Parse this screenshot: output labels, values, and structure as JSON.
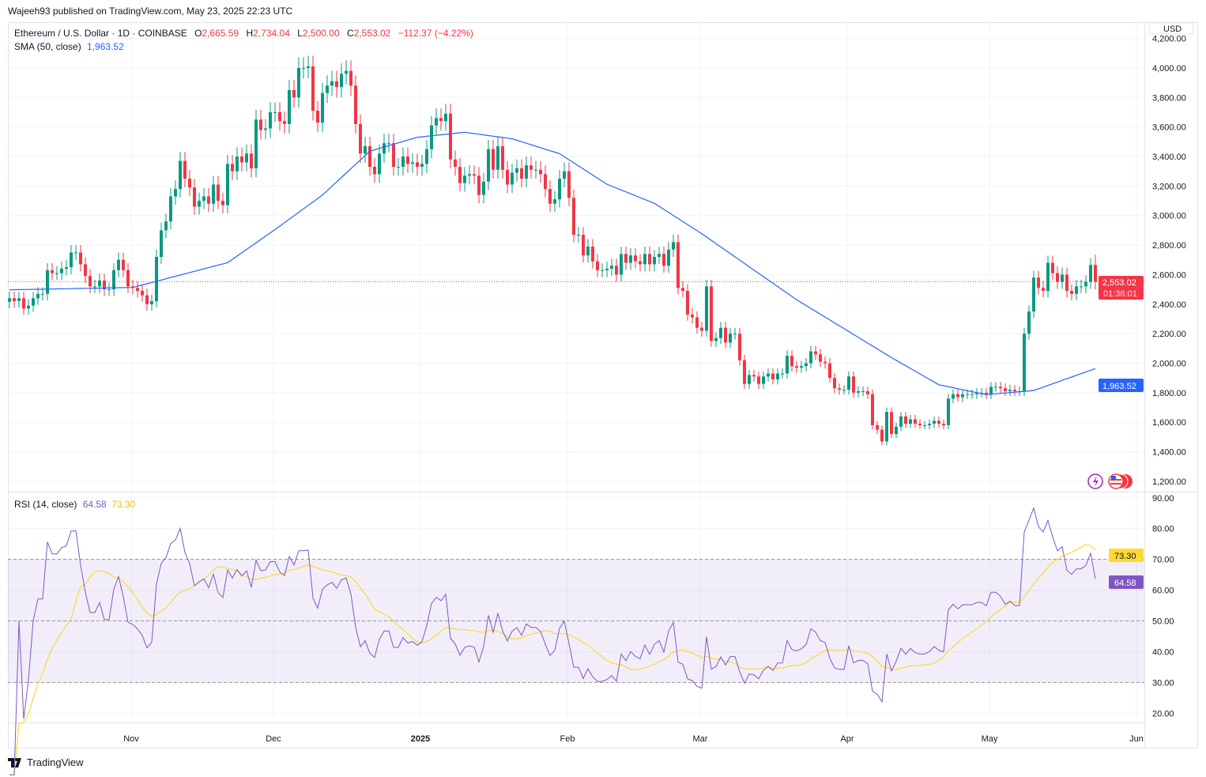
{
  "published": "Wajeeh93 published on TradingView.com, May 23, 2025 22:23 UTC",
  "legend": {
    "symbol": "Ethereum / U.S. Dollar · 1D · COINBASE",
    "o_label": "O",
    "o": "2,665.59",
    "h_label": "H",
    "h": "2,734.04",
    "l_label": "L",
    "l": "2,500.00",
    "c_label": "C",
    "c": "2,553.02",
    "change": "−112.37 (−4.22%)",
    "sma_label": "SMA (50, close)",
    "sma_value": "1,963.52",
    "rsi_label": "RSI (14, close)",
    "rsi_value": "64.58",
    "rsi_ma_value": "73.30"
  },
  "currency": "USD",
  "price_badge": {
    "price": "2,553.02",
    "countdown": "01:36:01"
  },
  "sma_badge": "1,963.52",
  "rsi_badges": {
    "rsi": "64.58",
    "ma": "73.30"
  },
  "logo_text": "TradingView",
  "colors": {
    "up": "#089981",
    "down": "#f23645",
    "sma": "#2962ff",
    "rsi": "#7e57c2",
    "rsi_ma": "#fdd835"
  },
  "chart_data": {
    "type": "candlestick",
    "start_date": "2024-10-06",
    "interval": "1D",
    "price_ticks": [
      "1,200.00",
      "1,400.00",
      "1,600.00",
      "1,800.00",
      "2,000.00",
      "2,200.00",
      "2,400.00",
      "2,600.00",
      "2,800.00",
      "3,000.00",
      "3,200.00",
      "3,400.00",
      "3,600.00",
      "3,800.00",
      "4,000.00",
      "4,200.00"
    ],
    "price_range": [
      1130,
      4310
    ],
    "rsi_ticks": [
      "20.00",
      "30.00",
      "40.00",
      "50.00",
      "60.00",
      "70.00",
      "80.00",
      "90.00"
    ],
    "rsi_range": [
      17,
      92
    ],
    "time_ticks": [
      {
        "label": "Nov",
        "index": 26
      },
      {
        "label": "Dec",
        "index": 56
      },
      {
        "label": "2025",
        "index": 87
      },
      {
        "label": "Feb",
        "index": 118
      },
      {
        "label": "Mar",
        "index": 146
      },
      {
        "label": "Apr",
        "index": 177
      },
      {
        "label": "May",
        "index": 207
      },
      {
        "label": "Jun",
        "index": 238
      }
    ],
    "last_open": 2665.59,
    "last_high": 2734.04,
    "last_low": 2500.0,
    "closes": [
      2440,
      2420,
      2440,
      2370,
      2390,
      2440,
      2470,
      2470,
      2630,
      2610,
      2610,
      2640,
      2650,
      2750,
      2750,
      2670,
      2590,
      2520,
      2520,
      2560,
      2500,
      2500,
      2630,
      2700,
      2630,
      2520,
      2510,
      2490,
      2460,
      2400,
      2420,
      2720,
      2900,
      2960,
      3130,
      3180,
      3370,
      3250,
      3190,
      3060,
      3100,
      3130,
      3080,
      3210,
      3100,
      3070,
      3350,
      3300,
      3400,
      3360,
      3420,
      3320,
      3650,
      3580,
      3590,
      3700,
      3700,
      3640,
      3620,
      3850,
      3800,
      4000,
      4000,
      4010,
      3710,
      3630,
      3830,
      3880,
      3910,
      3870,
      3960,
      3980,
      3880,
      3620,
      3420,
      3470,
      3330,
      3280,
      3420,
      3490,
      3490,
      3330,
      3330,
      3400,
      3350,
      3360,
      3330,
      3350,
      3450,
      3610,
      3660,
      3640,
      3690,
      3380,
      3330,
      3220,
      3270,
      3280,
      3270,
      3140,
      3230,
      3450,
      3310,
      3470,
      3310,
      3210,
      3290,
      3320,
      3250,
      3340,
      3310,
      3310,
      3280,
      3180,
      3080,
      3110,
      3250,
      3300,
      3120,
      2870,
      2870,
      2730,
      2790,
      2690,
      2630,
      2630,
      2640,
      2660,
      2600,
      2740,
      2680,
      2730,
      2690,
      2670,
      2740,
      2670,
      2720,
      2740,
      2660,
      2770,
      2820,
      2510,
      2490,
      2330,
      2310,
      2240,
      2220,
      2520,
      2150,
      2170,
      2240,
      2140,
      2200,
      2200,
      2020,
      1860,
      1920,
      1910,
      1860,
      1910,
      1930,
      1890,
      1930,
      1930,
      2050,
      1980,
      1970,
      1980,
      2000,
      2080,
      2060,
      2010,
      2000,
      1900,
      1830,
      1820,
      1820,
      1910,
      1800,
      1810,
      1810,
      1790,
      1580,
      1550,
      1470,
      1670,
      1520,
      1570,
      1640,
      1590,
      1620,
      1590,
      1580,
      1580,
      1590,
      1610,
      1590,
      1580,
      1760,
      1790,
      1770,
      1790,
      1790,
      1790,
      1800,
      1800,
      1790,
      1840,
      1840,
      1830,
      1810,
      1820,
      1810,
      1810,
      2200,
      2350,
      2580,
      2510,
      2490,
      2680,
      2610,
      2550,
      2600,
      2490,
      2470,
      2520,
      2520,
      2550,
      2665,
      2553.02
    ],
    "sma50": [
      [
        0,
        2497
      ],
      [
        26,
        2513
      ],
      [
        36,
        2597
      ],
      [
        46,
        2681
      ],
      [
        56,
        2905
      ],
      [
        66,
        3139
      ],
      [
        76,
        3436
      ],
      [
        86,
        3530
      ],
      [
        96,
        3564
      ],
      [
        106,
        3520
      ],
      [
        116,
        3419
      ],
      [
        126,
        3212
      ],
      [
        136,
        3083
      ],
      [
        146,
        2877
      ],
      [
        156,
        2653
      ],
      [
        166,
        2430
      ],
      [
        176,
        2234
      ],
      [
        186,
        2038
      ],
      [
        196,
        1854
      ],
      [
        206,
        1787
      ],
      [
        216,
        1815
      ],
      [
        229,
        1963.52
      ]
    ],
    "rsi_period": 14,
    "rsi_levels": [
      70,
      50,
      30
    ]
  }
}
